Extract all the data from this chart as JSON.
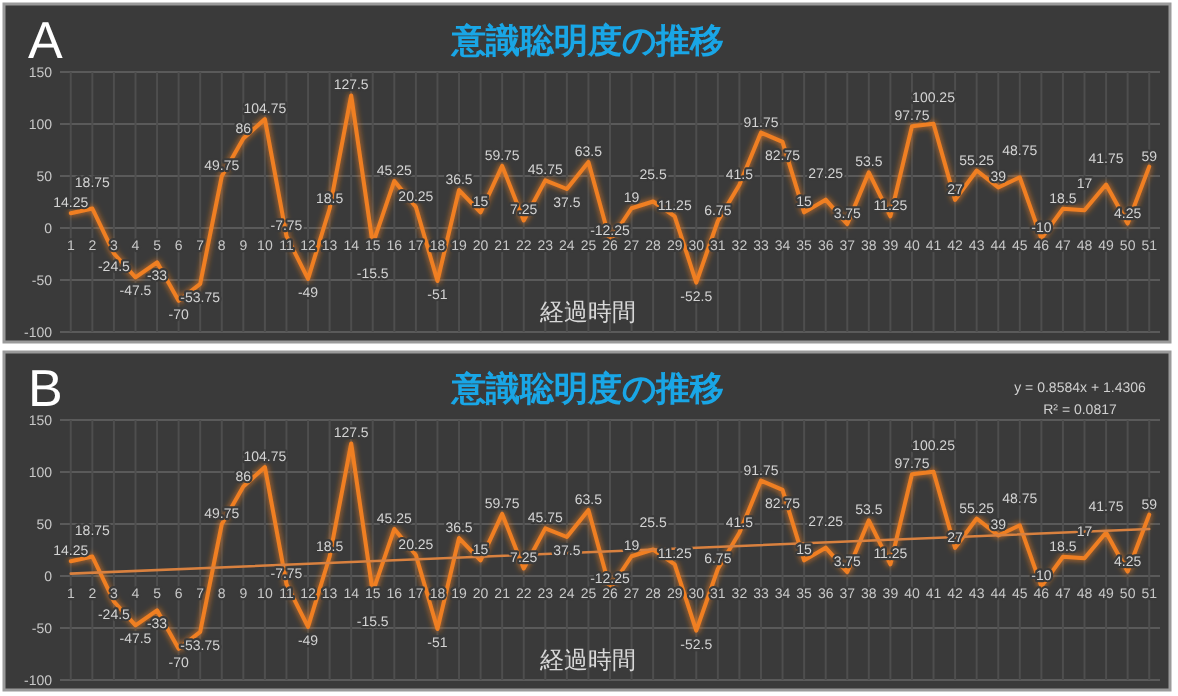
{
  "chart_data": [
    {
      "type": "line",
      "title": "意識聡明度の推移",
      "xlabel": "経過時間",
      "annotations": [
        "A"
      ],
      "x": [
        1,
        2,
        3,
        4,
        5,
        6,
        7,
        8,
        9,
        10,
        11,
        12,
        13,
        14,
        15,
        16,
        17,
        18,
        19,
        20,
        21,
        22,
        23,
        24,
        25,
        26,
        27,
        28,
        29,
        30,
        31,
        32,
        33,
        34,
        35,
        36,
        37,
        38,
        39,
        40,
        41,
        42,
        43,
        44,
        45,
        46,
        47,
        48,
        49,
        50,
        51
      ],
      "xlim": [
        0.5,
        51.5
      ],
      "xticks": [
        1,
        2,
        3,
        4,
        5,
        6,
        7,
        8,
        9,
        10,
        11,
        12,
        13,
        14,
        15,
        16,
        17,
        18,
        19,
        20,
        21,
        22,
        23,
        24,
        25,
        26,
        27,
        28,
        29,
        30,
        31,
        32,
        33,
        34,
        35,
        36,
        37,
        38,
        39,
        40,
        41,
        42,
        43,
        44,
        45,
        46,
        47,
        48,
        49,
        50,
        51
      ],
      "ylim": [
        -100,
        150
      ],
      "yticks": [
        -100,
        -50,
        0,
        50,
        100,
        150
      ],
      "grid": true,
      "data_labels": true,
      "series": [
        {
          "color": "#f07f22",
          "values": [
            14.25,
            18.75,
            -24.5,
            -47.5,
            -33,
            -70,
            -53.75,
            49.75,
            86,
            104.75,
            -7.75,
            -49,
            18.5,
            127.5,
            -15.5,
            45.25,
            20.25,
            -51,
            36.5,
            15,
            59.75,
            7.25,
            45.75,
            37.5,
            63.5,
            -12.25,
            19,
            25.5,
            11.25,
            -52.5,
            6.75,
            41.5,
            91.75,
            82.75,
            15,
            27.25,
            3.75,
            53.5,
            11.25,
            97.75,
            100.25,
            27,
            55.25,
            39,
            48.75,
            -10,
            18.5,
            17,
            41.75,
            4.25,
            59
          ]
        }
      ]
    },
    {
      "type": "line",
      "title": "意識聡明度の推移",
      "xlabel": "経過時間",
      "annotations": [
        "B",
        "y = 0.8584x + 1.4306",
        "R² = 0.0817"
      ],
      "x": [
        1,
        2,
        3,
        4,
        5,
        6,
        7,
        8,
        9,
        10,
        11,
        12,
        13,
        14,
        15,
        16,
        17,
        18,
        19,
        20,
        21,
        22,
        23,
        24,
        25,
        26,
        27,
        28,
        29,
        30,
        31,
        32,
        33,
        34,
        35,
        36,
        37,
        38,
        39,
        40,
        41,
        42,
        43,
        44,
        45,
        46,
        47,
        48,
        49,
        50,
        51
      ],
      "xlim": [
        0.5,
        51.5
      ],
      "xticks": [
        1,
        2,
        3,
        4,
        5,
        6,
        7,
        8,
        9,
        10,
        11,
        12,
        13,
        14,
        15,
        16,
        17,
        18,
        19,
        20,
        21,
        22,
        23,
        24,
        25,
        26,
        27,
        28,
        29,
        30,
        31,
        32,
        33,
        34,
        35,
        36,
        37,
        38,
        39,
        40,
        41,
        42,
        43,
        44,
        45,
        46,
        47,
        48,
        49,
        50,
        51
      ],
      "ylim": [
        -100,
        150
      ],
      "yticks": [
        -100,
        -50,
        0,
        50,
        100,
        150
      ],
      "grid": true,
      "data_labels": true,
      "series": [
        {
          "color": "#f07f22",
          "values": [
            14.25,
            18.75,
            -24.5,
            -47.5,
            -33,
            -70,
            -53.75,
            49.75,
            86,
            104.75,
            -7.75,
            -49,
            18.5,
            127.5,
            -15.5,
            45.25,
            20.25,
            -51,
            36.5,
            15,
            59.75,
            7.25,
            45.75,
            37.5,
            63.5,
            -12.25,
            19,
            25.5,
            11.25,
            -52.5,
            6.75,
            41.5,
            91.75,
            82.75,
            15,
            27.25,
            3.75,
            53.5,
            11.25,
            97.75,
            100.25,
            27,
            55.25,
            39,
            48.75,
            -10,
            18.5,
            17,
            41.75,
            4.25,
            59
          ]
        },
        {
          "type": "line",
          "color": "#d9813f",
          "x": [
            1,
            51
          ],
          "values": [
            2.3,
            45.2
          ],
          "value_labels": [
            null,
            null
          ]
        }
      ]
    }
  ]
}
